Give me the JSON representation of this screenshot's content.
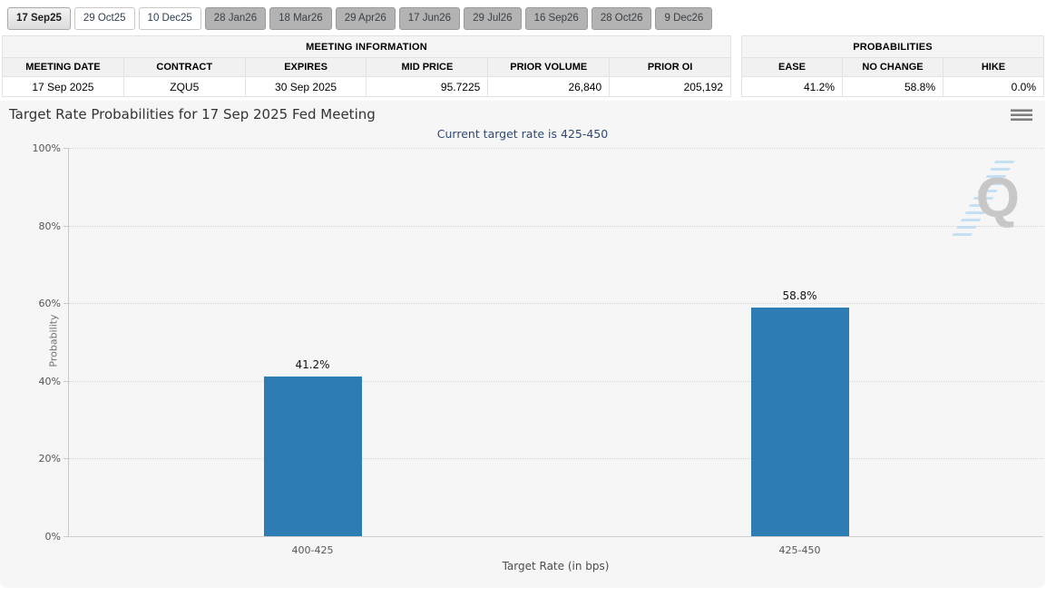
{
  "tabs": [
    {
      "label": "17 Sep25",
      "state": "active"
    },
    {
      "label": "29 Oct25",
      "state": "near"
    },
    {
      "label": "10 Dec25",
      "state": "near"
    },
    {
      "label": "28 Jan26",
      "state": "far"
    },
    {
      "label": "18 Mar26",
      "state": "far"
    },
    {
      "label": "29 Apr26",
      "state": "far"
    },
    {
      "label": "17 Jun26",
      "state": "far"
    },
    {
      "label": "29 Jul26",
      "state": "far"
    },
    {
      "label": "16 Sep26",
      "state": "far"
    },
    {
      "label": "28 Oct26",
      "state": "far"
    },
    {
      "label": "9 Dec26",
      "state": "far"
    }
  ],
  "meeting_information": {
    "title": "MEETING INFORMATION",
    "columns": [
      "MEETING DATE",
      "CONTRACT",
      "EXPIRES",
      "MID PRICE",
      "PRIOR VOLUME",
      "PRIOR OI"
    ],
    "row": [
      "17 Sep 2025",
      "ZQU5",
      "30 Sep 2025",
      "95.7225",
      "26,840",
      "205,192"
    ]
  },
  "probabilities": {
    "title": "PROBABILITIES",
    "columns": [
      "EASE",
      "NO CHANGE",
      "HIKE"
    ],
    "row": [
      "41.2%",
      "58.8%",
      "0.0%"
    ]
  },
  "chart_data": {
    "type": "bar",
    "title": "Target Rate Probabilities for 17 Sep 2025 Fed Meeting",
    "subtitle": "Current target rate is 425-450",
    "categories": [
      "400-425",
      "425-450"
    ],
    "values": [
      41.2,
      58.8
    ],
    "data_labels": [
      "41.2%",
      "58.8%"
    ],
    "xlabel": "Target Rate (in bps)",
    "ylabel": "Probability",
    "ylim": [
      0,
      100
    ],
    "ytick_step": 20,
    "ytick_labels": [
      "0%",
      "20%",
      "40%",
      "60%",
      "80%",
      "100%"
    ],
    "bar_color": "#2e7cb4",
    "subtitle_color": "#2e4a73",
    "grid": "dotted-horizontal",
    "legend_position": "none"
  },
  "icons": {
    "menu_icon": "hamburger-icon",
    "watermark_letter": "Q"
  }
}
